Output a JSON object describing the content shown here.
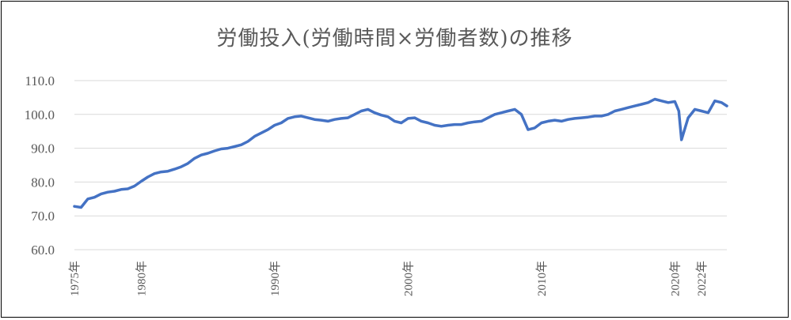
{
  "chart_data": {
    "type": "line",
    "title": "労働投入(労働時間×労働者数)の推移",
    "xlabel": "",
    "ylabel": "",
    "ylim": [
      60,
      110
    ],
    "xlim": [
      1975,
      2023.9
    ],
    "grid": true,
    "y_ticks": [
      "60.0",
      "70.0",
      "80.0",
      "90.0",
      "100.0",
      "110.0"
    ],
    "x_ticks": [
      {
        "value": 1975,
        "label": "1975年"
      },
      {
        "value": 1980,
        "label": "1980年"
      },
      {
        "value": 1990,
        "label": "1990年"
      },
      {
        "value": 2000,
        "label": "2000年"
      },
      {
        "value": 2010,
        "label": "2010年"
      },
      {
        "value": 2020,
        "label": "2020年"
      },
      {
        "value": 2022,
        "label": "2022年"
      }
    ],
    "series": [
      {
        "color": "#4472c4",
        "x": [
          1975.0,
          1975.5,
          1976.0,
          1976.5,
          1977.0,
          1977.5,
          1978.0,
          1978.5,
          1979.0,
          1979.5,
          1980.0,
          1980.5,
          1981.0,
          1981.5,
          1982.0,
          1982.5,
          1983.0,
          1983.5,
          1984.0,
          1984.5,
          1985.0,
          1985.5,
          1986.0,
          1986.5,
          1987.0,
          1987.5,
          1988.0,
          1988.5,
          1989.0,
          1989.5,
          1990.0,
          1990.5,
          1991.0,
          1991.5,
          1992.0,
          1992.5,
          1993.0,
          1993.5,
          1994.0,
          1994.5,
          1995.0,
          1995.5,
          1996.0,
          1996.5,
          1997.0,
          1997.5,
          1998.0,
          1998.5,
          1999.0,
          1999.5,
          2000.0,
          2000.5,
          2001.0,
          2001.5,
          2002.0,
          2002.5,
          2003.0,
          2003.5,
          2004.0,
          2004.5,
          2005.0,
          2005.5,
          2006.0,
          2006.5,
          2007.0,
          2007.5,
          2008.0,
          2008.5,
          2009.0,
          2009.5,
          2010.0,
          2010.5,
          2011.0,
          2011.5,
          2012.0,
          2012.5,
          2013.0,
          2013.5,
          2014.0,
          2014.5,
          2015.0,
          2015.5,
          2016.0,
          2016.5,
          2017.0,
          2017.5,
          2018.0,
          2018.5,
          2019.0,
          2019.5,
          2020.0,
          2020.3,
          2020.5,
          2021.0,
          2021.5,
          2022.0,
          2022.5,
          2023.0,
          2023.5,
          2023.9
        ],
        "values": [
          72.8,
          72.5,
          75.0,
          75.5,
          76.5,
          77.0,
          77.3,
          77.8,
          78.0,
          78.8,
          80.2,
          81.5,
          82.5,
          83.0,
          83.2,
          83.8,
          84.5,
          85.5,
          87.0,
          88.0,
          88.5,
          89.2,
          89.8,
          90.0,
          90.5,
          91.0,
          92.0,
          93.5,
          94.5,
          95.5,
          96.8,
          97.5,
          98.8,
          99.3,
          99.5,
          99.0,
          98.5,
          98.3,
          98.0,
          98.5,
          98.8,
          99.0,
          100.0,
          101.0,
          101.5,
          100.5,
          99.8,
          99.3,
          98.0,
          97.5,
          98.8,
          99.0,
          98.0,
          97.5,
          96.8,
          96.5,
          96.8,
          97.0,
          97.0,
          97.5,
          97.8,
          98.0,
          99.0,
          100.0,
          100.5,
          101.0,
          101.5,
          100.0,
          95.5,
          96.0,
          97.5,
          98.0,
          98.3,
          98.0,
          98.5,
          98.8,
          99.0,
          99.2,
          99.5,
          99.5,
          100.0,
          101.0,
          101.5,
          102.0,
          102.5,
          103.0,
          103.5,
          104.5,
          104.0,
          103.5,
          103.8,
          101.0,
          92.5,
          99.0,
          101.5,
          101.0,
          100.5,
          104.0,
          103.5,
          102.5
        ]
      }
    ]
  }
}
